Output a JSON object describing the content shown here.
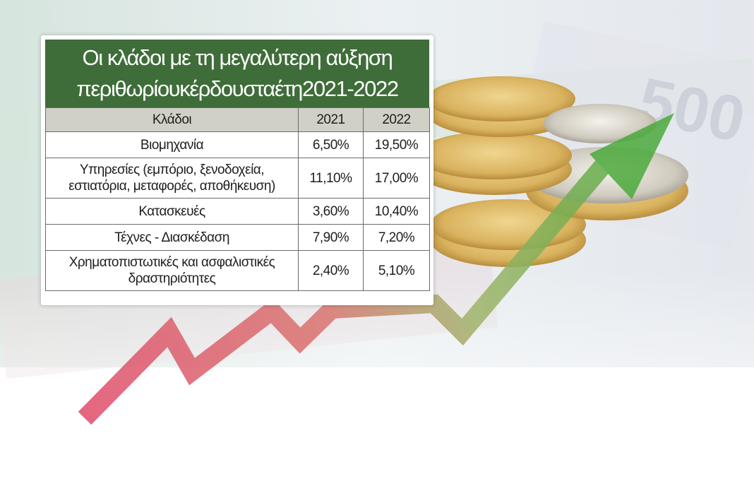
{
  "chart_data": {
    "type": "table",
    "title": [
      "Οι κλάδοι με τη μεγαλύτερη αύξηση",
      "περιθωρίουκέρδουσταέτη2021-2022"
    ],
    "columns": [
      "Κλάδοι",
      "2021",
      "2022"
    ],
    "rows": [
      {
        "label": [
          "Βιομηχανία"
        ],
        "v2021": "6,50%",
        "v2022": "19,50%"
      },
      {
        "label": [
          "Υπηρεσίες (εμπόριο, ξενοδοχεία,",
          "εστιατόρια, μεταφορές, αποθήκευση)"
        ],
        "v2021": "11,10%",
        "v2022": "17,00%"
      },
      {
        "label": [
          "Κατασκευές"
        ],
        "v2021": "3,60%",
        "v2022": "10,40%"
      },
      {
        "label": [
          "Τέχνες - Διασκέδαση"
        ],
        "v2021": "7,90%",
        "v2022": "7,20%"
      },
      {
        "label": [
          "Χρηματοπιστωτικές και ασφαλιστικές",
          "δραστηριότητες"
        ],
        "v2021": "2,40%",
        "v2022": "5,10%"
      }
    ]
  },
  "colors": {
    "title_bg": "#3f6d39",
    "header_bg": "#d0d0c6",
    "arrow_start": "#e04a6a",
    "arrow_end": "#4caa3c",
    "coin_gold": "#d9b25e"
  },
  "background_decoration": [
    "euro-banknotes",
    "euro-coins-stack",
    "rising-arrow"
  ]
}
